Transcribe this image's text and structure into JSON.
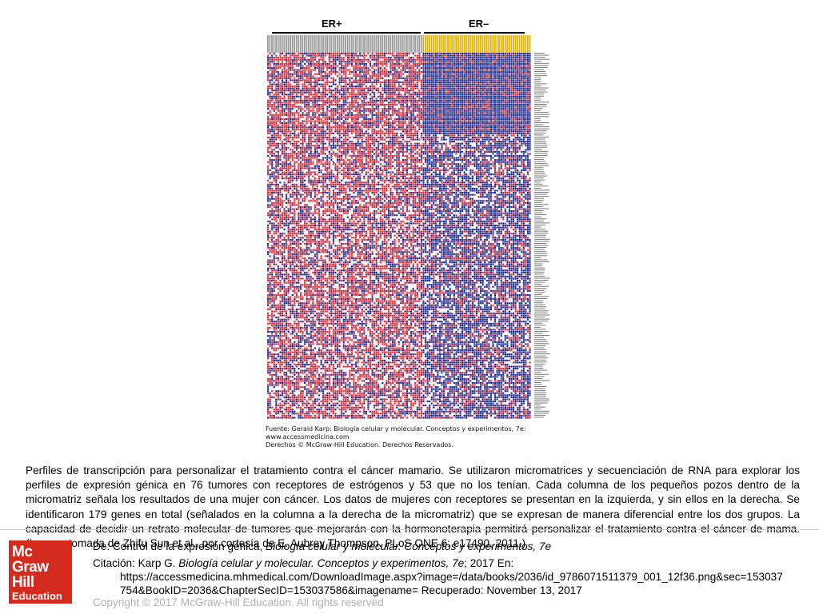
{
  "figure": {
    "group_left": "ER+",
    "group_right": "ER–",
    "source_lines": [
      "Fuente: Gerald Karp: Biología celular y molecular. Conceptos y experimentos, 7e:",
      "www.accessmedicina.com",
      "Derechos © McGraw-Hill Education. Derechos Reservados."
    ],
    "colors": {
      "red": "#d8323a",
      "blue": "#1f2f8f",
      "white": "#f2f2f6",
      "header_left": "#9a9a9a",
      "header_right": "#e0b400"
    }
  },
  "caption": "Perfiles de transcripción para personalizar el tratamiento contra el cáncer mamario. Se utilizaron micromatrices y secuenciación de RNA para explorar los perfiles de expresión génica en 76 tumores con receptores de estrógenos y 53 que no los tenían. Cada columna de los pequeños pozos dentro de la micromatriz señala los resultados de una mujer con cáncer. Los datos de mujeres con receptores se presentan en la izquierda, y sin ellos en la derecha. Se identificaron 179 genes en total (señalados en la columna a la derecha de la micromatriz) que se expresan de manera diferencial entre los dos grupos. La capacidad de decidir un retrato molecular de tumores que mejorarán con la hormonoterapia permitirá personalizar el tratamiento contra el cáncer de mama. (Imagen tomada de Zhifu Sun et al., por cortesía de E. Aubrey Thompson. PLoS ONE 6: e17490, 2011.)",
  "logo": {
    "line1": "Mc",
    "line2": "Graw",
    "line3": "Hill",
    "line4": "Education"
  },
  "from": {
    "prefix": "De: ",
    "title": "Control de la expresión génica, ",
    "book": "Biología celular y molecular. Conceptos y experimentos, 7e"
  },
  "citation": {
    "prefix": "Citación: Karp G. ",
    "book": "Biología celular y molecular. Conceptos y experimentos, 7e",
    "rest": "; 2017 En:",
    "url1": "https://accessmedicina.mhmedical.com/DownloadImage.aspx?image=/data/books/2036/id_9786071511379_001_12f36.png&sec=153037",
    "url2": "754&BookID=2036&ChapterSecID=153037586&imagename= Recuperado: November 13, 2017"
  },
  "copyright": "Copyright © 2017 McGraw-Hill Education. All rights reserved"
}
